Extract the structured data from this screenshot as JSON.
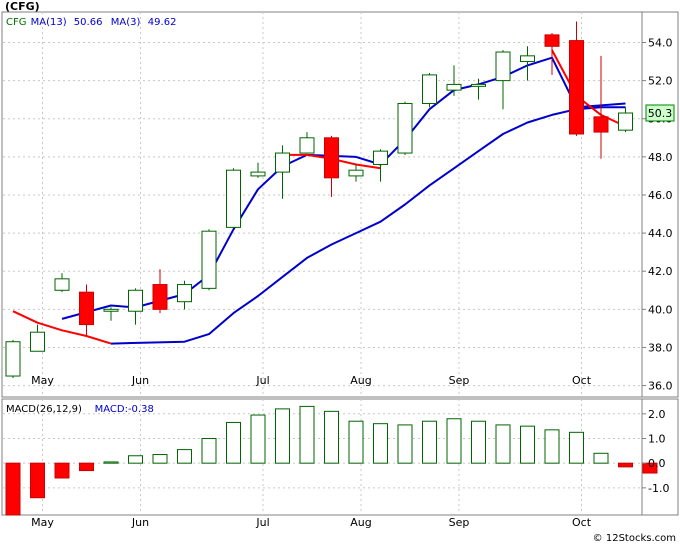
{
  "header": {
    "title": "(CFG)",
    "legend": [
      {
        "text": "CFG",
        "color": "#007000"
      },
      {
        "text": "MA(13)",
        "color": "#0000cc"
      },
      {
        "text": "50.66",
        "color": "#0000cc"
      },
      {
        "text": "MA(3)",
        "color": "#0000cc"
      },
      {
        "text": "49.62",
        "color": "#0000cc"
      }
    ]
  },
  "last_price_label": "50.3",
  "macd_legend": [
    {
      "text": "MACD(26,12,9)",
      "color": "#000000"
    },
    {
      "text": "MACD:-0.38",
      "color": "#0000cc"
    }
  ],
  "footer": {
    "copyright": "© 12Stocks.com"
  },
  "colors": {
    "up": "#006400",
    "down": "#ff0000",
    "ma13": "#0000cc",
    "ma3_up": "#0000cc",
    "ma3_down": "#ff0000"
  },
  "chart_data": [
    {
      "type": "candlestick",
      "title": "(CFG)",
      "symbol": "CFG",
      "months": [
        {
          "label": "May",
          "index": 1
        },
        {
          "label": "Jun",
          "index": 5
        },
        {
          "label": "Jul",
          "index": 10
        },
        {
          "label": "Aug",
          "index": 14
        },
        {
          "label": "Sep",
          "index": 18
        },
        {
          "label": "Oct",
          "index": 23
        }
      ],
      "ylim": [
        35.4,
        55.6
      ],
      "yticks": [
        36.0,
        38.0,
        40.0,
        42.0,
        44.0,
        46.0,
        48.0,
        50.0,
        52.0,
        54.0
      ],
      "ytick_labels": [
        "36.0",
        "38.0",
        "40.0",
        "42.0",
        "44.0",
        "46.0",
        "48.0",
        "50.0",
        "52.0",
        "54.0"
      ],
      "candles": [
        {
          "open": 36.5,
          "close": 38.3,
          "high": 38.4,
          "low": 36.4
        },
        {
          "open": 37.8,
          "close": 38.8,
          "high": 39.2,
          "low": 37.8
        },
        {
          "open": 41.0,
          "close": 41.6,
          "high": 41.9,
          "low": 40.9
        },
        {
          "open": 40.9,
          "close": 39.2,
          "high": 41.3,
          "low": 38.6
        },
        {
          "open": 39.9,
          "close": 40.0,
          "high": 40.1,
          "low": 39.4
        },
        {
          "open": 39.9,
          "close": 41.0,
          "high": 41.1,
          "low": 39.2
        },
        {
          "open": 41.3,
          "close": 40.0,
          "high": 42.1,
          "low": 39.8
        },
        {
          "open": 40.4,
          "close": 41.3,
          "high": 41.5,
          "low": 40.0
        },
        {
          "open": 41.1,
          "close": 44.1,
          "high": 44.2,
          "low": 41.0
        },
        {
          "open": 44.3,
          "close": 47.3,
          "high": 47.4,
          "low": 44.3
        },
        {
          "open": 47.0,
          "close": 47.2,
          "high": 47.7,
          "low": 46.9
        },
        {
          "open": 47.2,
          "close": 48.2,
          "high": 48.6,
          "low": 45.8
        },
        {
          "open": 48.2,
          "close": 49.0,
          "high": 49.3,
          "low": 48.2
        },
        {
          "open": 49.0,
          "close": 46.9,
          "high": 49.1,
          "low": 45.9
        },
        {
          "open": 47.0,
          "close": 47.3,
          "high": 47.6,
          "low": 46.7
        },
        {
          "open": 47.6,
          "close": 48.3,
          "high": 48.4,
          "low": 46.7
        },
        {
          "open": 48.2,
          "close": 50.8,
          "high": 50.9,
          "low": 48.1
        },
        {
          "open": 50.8,
          "close": 52.3,
          "high": 52.4,
          "low": 50.6
        },
        {
          "open": 51.5,
          "close": 51.8,
          "high": 52.8,
          "low": 51.2
        },
        {
          "open": 51.7,
          "close": 51.8,
          "high": 52.1,
          "low": 51.0
        },
        {
          "open": 52.0,
          "close": 53.5,
          "high": 53.6,
          "low": 50.5
        },
        {
          "open": 53.0,
          "close": 53.3,
          "high": 53.8,
          "low": 52.0
        },
        {
          "open": 54.4,
          "close": 53.8,
          "high": 54.5,
          "low": 52.3
        },
        {
          "open": 54.1,
          "close": 49.2,
          "high": 55.1,
          "low": 49.1
        },
        {
          "open": 50.1,
          "close": 49.3,
          "high": 53.3,
          "low": 47.9
        },
        {
          "open": 49.4,
          "close": 50.3,
          "high": 50.6,
          "low": 49.3
        }
      ],
      "series": [
        {
          "name": "MA(13)",
          "points": [
            [
              2,
              39.5
            ],
            [
              4,
              40.2
            ],
            [
              5,
              40.1
            ],
            [
              7,
              40.8
            ],
            [
              8,
              41.8
            ],
            [
              9,
              44.2
            ],
            [
              10,
              46.3
            ],
            [
              11,
              47.5
            ],
            [
              12,
              48.1
            ],
            [
              14,
              48.0
            ],
            [
              15,
              47.6
            ],
            [
              16,
              48.9
            ],
            [
              17,
              50.5
            ],
            [
              18,
              51.5
            ],
            [
              19,
              51.8
            ],
            [
              20,
              52.2
            ],
            [
              21,
              52.8
            ],
            [
              22,
              53.2
            ],
            [
              23,
              50.6
            ],
            [
              24,
              50.7
            ],
            [
              25,
              50.8
            ]
          ]
        },
        {
          "name": "MA(13) lower",
          "points": [
            [
              4,
              38.2
            ],
            [
              7,
              38.3
            ],
            [
              8,
              38.7
            ],
            [
              9,
              39.8
            ],
            [
              10,
              40.7
            ],
            [
              11,
              41.7
            ],
            [
              12,
              42.7
            ],
            [
              13,
              43.4
            ],
            [
              14,
              44.0
            ],
            [
              15,
              44.6
            ],
            [
              16,
              45.5
            ],
            [
              17,
              46.5
            ],
            [
              18,
              47.4
            ],
            [
              19,
              48.3
            ],
            [
              20,
              49.2
            ],
            [
              21,
              49.8
            ],
            [
              22,
              50.2
            ],
            [
              23,
              50.5
            ],
            [
              24,
              50.6
            ],
            [
              25,
              50.6
            ]
          ]
        },
        {
          "name": "MA(3) down-1",
          "points": [
            [
              0,
              39.9
            ],
            [
              1,
              39.3
            ],
            [
              2,
              38.9
            ],
            [
              3,
              38.6
            ],
            [
              4,
              38.2
            ]
          ]
        },
        {
          "name": "MA(3) down-2",
          "points": [
            [
              11,
              48.1
            ],
            [
              12,
              48.1
            ],
            [
              13,
              47.9
            ],
            [
              14,
              47.6
            ],
            [
              15,
              47.4
            ]
          ]
        },
        {
          "name": "MA(3) down-3",
          "points": [
            [
              22,
              53.6
            ],
            [
              23,
              51.2
            ],
            [
              24,
              50.2
            ],
            [
              25,
              49.6
            ]
          ]
        }
      ]
    },
    {
      "type": "bar",
      "title": "MACD(26,12,9)",
      "ylim": [
        -2.1,
        2.6
      ],
      "yticks": [
        2.0,
        1.0,
        0.0,
        -1.0
      ],
      "ytick_labels": [
        "2.0",
        "1.0",
        "0.0",
        "-1.0"
      ],
      "values": [
        -2.1,
        -1.4,
        -0.6,
        -0.3,
        0.05,
        0.3,
        0.35,
        0.55,
        1.0,
        1.65,
        1.95,
        2.2,
        2.3,
        2.1,
        1.7,
        1.6,
        1.55,
        1.7,
        1.8,
        1.7,
        1.55,
        1.5,
        1.35,
        1.25,
        0.4,
        -0.15,
        -0.4
      ]
    }
  ]
}
